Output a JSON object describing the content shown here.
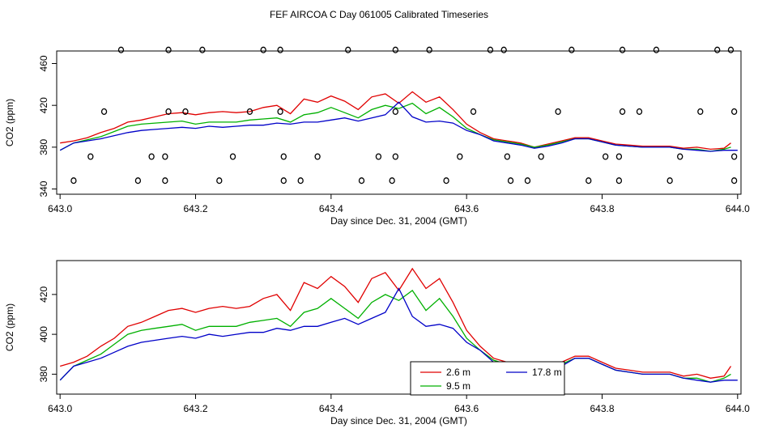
{
  "title": "FEF AIRCOA C  Day 061005  Calibrated Timeseries",
  "colors": {
    "s26": "#e00000",
    "s95": "#00b000",
    "s178": "#0000c8",
    "axis": "#000000"
  },
  "chart_data": [
    {
      "type": "line",
      "xlabel": "Day since Dec. 31, 2004 (GMT)",
      "ylabel": "CO2 (ppm)",
      "xlim": [
        642.995,
        644.005
      ],
      "ylim": [
        335,
        472
      ],
      "xticks": [
        "643.0",
        "643.2",
        "643.4",
        "643.6",
        "643.8",
        "644.0"
      ],
      "yticks": [
        "340",
        "380",
        "420",
        "460"
      ],
      "series": [
        {
          "name": "2.6 m",
          "color": "#e00000",
          "x": [
            643.0,
            643.02,
            643.04,
            643.06,
            643.08,
            643.1,
            643.12,
            643.14,
            643.16,
            643.18,
            643.2,
            643.22,
            643.24,
            643.26,
            643.28,
            643.3,
            643.32,
            643.34,
            643.36,
            643.38,
            643.4,
            643.42,
            643.44,
            643.46,
            643.48,
            643.5,
            643.52,
            643.54,
            643.56,
            643.58,
            643.6,
            643.62,
            643.64,
            643.66,
            643.68,
            643.7,
            643.72,
            643.74,
            643.76,
            643.78,
            643.8,
            643.82,
            643.84,
            643.86,
            643.88,
            643.9,
            643.92,
            643.94,
            643.96,
            643.98,
            643.99
          ],
          "y": [
            384,
            386,
            389,
            394,
            398,
            404,
            406,
            409,
            412,
            413,
            411,
            413,
            414,
            413,
            414,
            418,
            420,
            412,
            426,
            423,
            429,
            424,
            416,
            428,
            431,
            422,
            433,
            423,
            428,
            416,
            402,
            394,
            388,
            386,
            384,
            380,
            383,
            386,
            389,
            389,
            386,
            383,
            382,
            381,
            381,
            381,
            379,
            380,
            378,
            379,
            384
          ]
        },
        {
          "name": "9.5 m",
          "color": "#00b000",
          "x": [
            643.0,
            643.02,
            643.04,
            643.06,
            643.08,
            643.1,
            643.12,
            643.14,
            643.16,
            643.18,
            643.2,
            643.22,
            643.24,
            643.26,
            643.28,
            643.3,
            643.32,
            643.34,
            643.36,
            643.38,
            643.4,
            643.42,
            643.44,
            643.46,
            643.48,
            643.5,
            643.52,
            643.54,
            643.56,
            643.58,
            643.6,
            643.62,
            643.64,
            643.66,
            643.68,
            643.7,
            643.72,
            643.74,
            643.76,
            643.78,
            643.8,
            643.82,
            643.84,
            643.86,
            643.88,
            643.9,
            643.92,
            643.94,
            643.96,
            643.98,
            643.99
          ],
          "y": [
            377,
            384,
            387,
            390,
            395,
            400,
            402,
            403,
            404,
            405,
            402,
            404,
            404,
            404,
            406,
            407,
            408,
            404,
            411,
            413,
            418,
            413,
            408,
            416,
            420,
            417,
            422,
            412,
            418,
            409,
            398,
            392,
            387,
            385,
            383,
            380,
            382,
            385,
            388,
            388,
            385,
            382,
            381,
            380,
            380,
            380,
            378,
            378,
            376,
            378,
            380
          ]
        },
        {
          "name": "17.8 m",
          "color": "#0000c8",
          "x": [
            643.0,
            643.02,
            643.04,
            643.06,
            643.08,
            643.1,
            643.12,
            643.14,
            643.16,
            643.18,
            643.2,
            643.22,
            643.24,
            643.26,
            643.28,
            643.3,
            643.32,
            643.34,
            643.36,
            643.38,
            643.4,
            643.42,
            643.44,
            643.46,
            643.48,
            643.5,
            643.52,
            643.54,
            643.56,
            643.58,
            643.6,
            643.62,
            643.64,
            643.66,
            643.68,
            643.7,
            643.72,
            643.74,
            643.76,
            643.78,
            643.8,
            643.82,
            643.84,
            643.86,
            643.88,
            643.9,
            643.92,
            643.94,
            643.96,
            643.98,
            644.0
          ],
          "y": [
            377,
            384,
            386,
            388,
            391,
            394,
            396,
            397,
            398,
            399,
            398,
            400,
            399,
            400,
            401,
            401,
            403,
            402,
            404,
            404,
            406,
            408,
            405,
            408,
            411,
            423,
            409,
            404,
            405,
            403,
            396,
            392,
            386,
            384,
            382,
            379,
            381,
            384,
            388,
            388,
            385,
            382,
            381,
            380,
            380,
            380,
            378,
            377,
            376,
            377,
            377
          ]
        }
      ],
      "points": {
        "x": [
          643.09,
          643.16,
          643.21,
          643.3,
          643.325,
          643.425,
          643.495,
          643.545,
          643.635,
          643.655,
          643.755,
          643.83,
          643.88,
          643.97,
          643.99,
          643.065,
          643.16,
          643.185,
          643.28,
          643.325,
          643.495,
          643.61,
          643.735,
          643.83,
          643.855,
          643.945,
          643.995,
          643.045,
          643.135,
          643.155,
          643.255,
          643.33,
          643.38,
          643.47,
          643.495,
          643.59,
          643.66,
          643.71,
          643.805,
          643.825,
          643.915,
          643.995,
          643.02,
          643.115,
          643.155,
          643.235,
          643.33,
          643.355,
          643.445,
          643.49,
          643.57,
          643.665,
          643.69,
          643.78,
          643.825,
          643.9,
          643.995
        ],
        "y": [
          473,
          473,
          473,
          473,
          473,
          473,
          473,
          473,
          473,
          473,
          473,
          473,
          473,
          473,
          473,
          414,
          414,
          414,
          414,
          414,
          414,
          414,
          414,
          414,
          414,
          414,
          414,
          371,
          371,
          371,
          371,
          371,
          371,
          371,
          371,
          371,
          371,
          371,
          371,
          371,
          371,
          371,
          348,
          348,
          348,
          348,
          348,
          348,
          348,
          348,
          348,
          348,
          348,
          348,
          348,
          348,
          348
        ]
      }
    },
    {
      "type": "line",
      "xlabel": "Day since Dec. 31, 2004 (GMT)",
      "ylabel": "CO2 (ppm)",
      "xlim": [
        642.995,
        644.005
      ],
      "ylim": [
        370,
        437
      ],
      "xticks": [
        "643.0",
        "643.2",
        "643.4",
        "643.6",
        "643.8",
        "644.0"
      ],
      "yticks": [
        "380",
        "400",
        "420"
      ],
      "legend": {
        "position": "bottom-center",
        "entries": [
          "2.6 m",
          "9.5 m",
          "17.8 m"
        ]
      }
    }
  ]
}
